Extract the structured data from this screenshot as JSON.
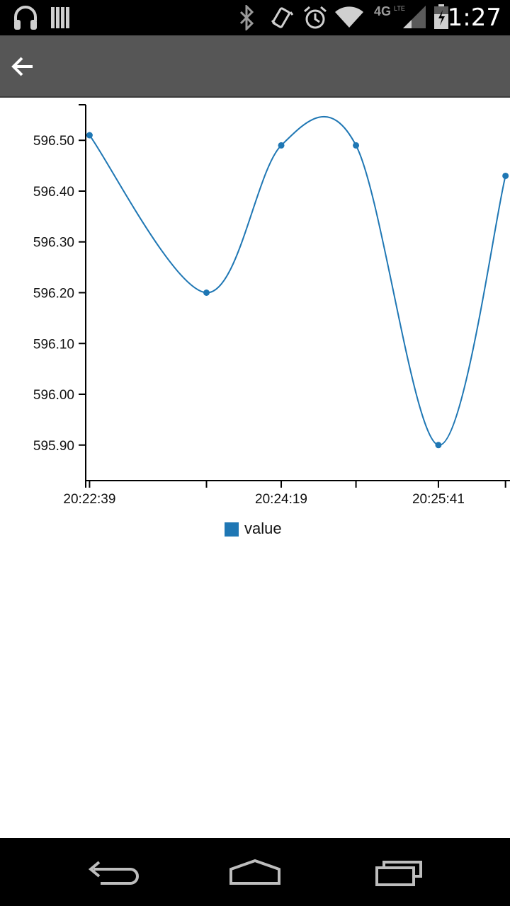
{
  "status_bar": {
    "time": "1:27",
    "network_type": "4G",
    "network_sub": "LTE",
    "icons": [
      "headphones-icon",
      "storage-icon",
      "bluetooth-icon",
      "vibrate-icon",
      "alarm-icon",
      "wifi-icon",
      "signal-icon",
      "battery-icon"
    ]
  },
  "action_bar": {
    "back_icon": "arrow-left-icon"
  },
  "chart_data": {
    "type": "line",
    "x": [
      "20:22:39",
      "20:23:40",
      "20:24:19",
      "20:24:58",
      "20:25:41",
      "20:26:16"
    ],
    "x_tick_labels": [
      "20:22:39",
      "20:24:19",
      "20:25:41"
    ],
    "series": [
      {
        "name": "value",
        "values": [
          596.51,
          596.2,
          596.49,
          596.49,
          595.9,
          596.43
        ],
        "color": "#1f77b4"
      }
    ],
    "y_tick_labels": [
      "596.50",
      "596.40",
      "596.30",
      "596.20",
      "596.10",
      "596.00",
      "595.90"
    ],
    "ylim": [
      595.83,
      596.57
    ],
    "grid": false,
    "legend_placement": "bottom-center",
    "curve": "smooth"
  },
  "legend": {
    "label": "value",
    "color": "#1f77b4"
  },
  "nav_bar": {
    "icons": [
      "back-nav-icon",
      "home-nav-icon",
      "recents-nav-icon"
    ]
  }
}
